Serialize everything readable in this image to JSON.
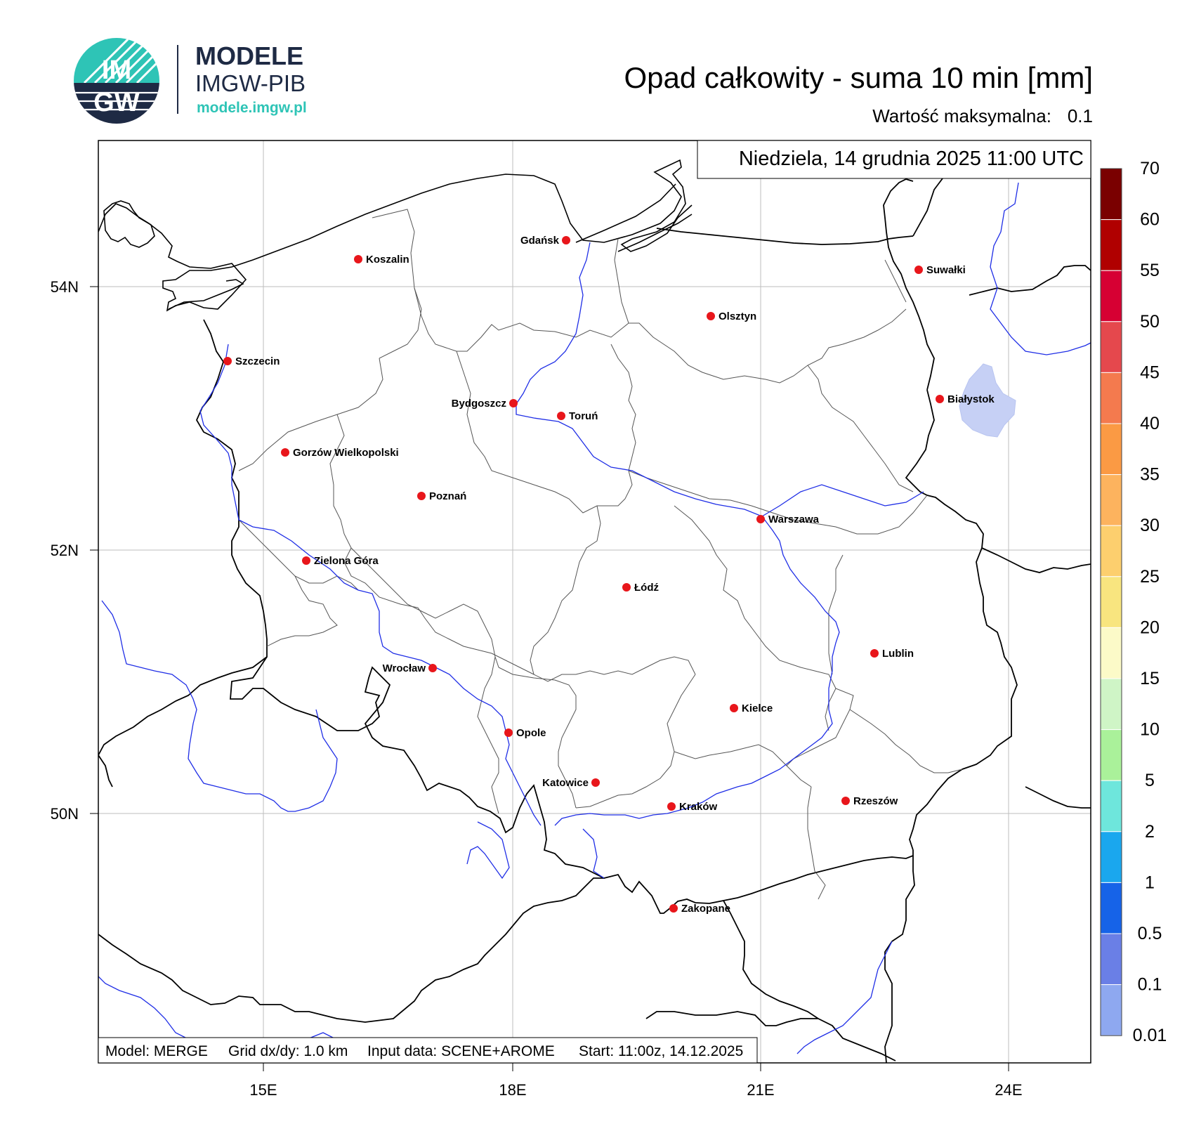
{
  "logo": {
    "circle_text_top": "IM",
    "circle_text_bottom": "GW",
    "brand_line1": "MODELE",
    "brand_line2": "IMGW-PIB",
    "url": "modele.imgw.pl",
    "teal": "#2ec4b6",
    "navy": "#1e2a44"
  },
  "title": "Opad całkowity - suma 10 min [mm]",
  "max_value_label": "Wartość maksymalna:",
  "max_value": "0.1",
  "date_label": "Niedziela, 14 grudnia 2025 11:00 UTC",
  "footer": {
    "model": "Model: MERGE",
    "grid": "Grid dx/dy: 1.0 km",
    "input": "Input data: SCENE+AROME",
    "start": "Start: 11:00z, 14.12.2025"
  },
  "axes": {
    "lat_ticks": [
      "54N",
      "52N",
      "50N"
    ],
    "lon_ticks": [
      "15E",
      "18E",
      "21E",
      "24E"
    ]
  },
  "colorbar": {
    "labels": [
      "70",
      "60",
      "55",
      "50",
      "45",
      "40",
      "35",
      "30",
      "25",
      "20",
      "15",
      "10",
      "5",
      "2",
      "1",
      "0.5",
      "0.1",
      "0.01"
    ],
    "colors": [
      "#7a0000",
      "#b00000",
      "#d60033",
      "#e5484d",
      "#f47a4e",
      "#fb9a44",
      "#fdb35e",
      "#fdcf6e",
      "#f8e57f",
      "#fcfac8",
      "#cff5c6",
      "#aaf19a",
      "#6ee6dc",
      "#1aa7ee",
      "#1663e8",
      "#6a7fe6",
      "#8ea8f0",
      "#cbd6f7"
    ]
  },
  "precip_color": "#c6d0f5",
  "cities": [
    {
      "name": "Gdańsk",
      "align": "left"
    },
    {
      "name": "Koszalin",
      "align": "right"
    },
    {
      "name": "Szczecin",
      "align": "right"
    },
    {
      "name": "Suwałki",
      "align": "right"
    },
    {
      "name": "Olsztyn",
      "align": "right"
    },
    {
      "name": "Białystok",
      "align": "right"
    },
    {
      "name": "Bydgoszcz",
      "align": "left"
    },
    {
      "name": "Toruń",
      "align": "right"
    },
    {
      "name": "Gorzów Wielkopolski",
      "align": "right"
    },
    {
      "name": "Poznań",
      "align": "right"
    },
    {
      "name": "Warszawa",
      "align": "right"
    },
    {
      "name": "Zielona Góra",
      "align": "right"
    },
    {
      "name": "Łódź",
      "align": "right"
    },
    {
      "name": "Lublin",
      "align": "right"
    },
    {
      "name": "Wrocław",
      "align": "left"
    },
    {
      "name": "Kielce",
      "align": "right"
    },
    {
      "name": "Opole",
      "align": "right"
    },
    {
      "name": "Katowice",
      "align": "left"
    },
    {
      "name": "Kraków",
      "align": "right"
    },
    {
      "name": "Rzeszów",
      "align": "right"
    },
    {
      "name": "Zakopane",
      "align": "right"
    }
  ]
}
